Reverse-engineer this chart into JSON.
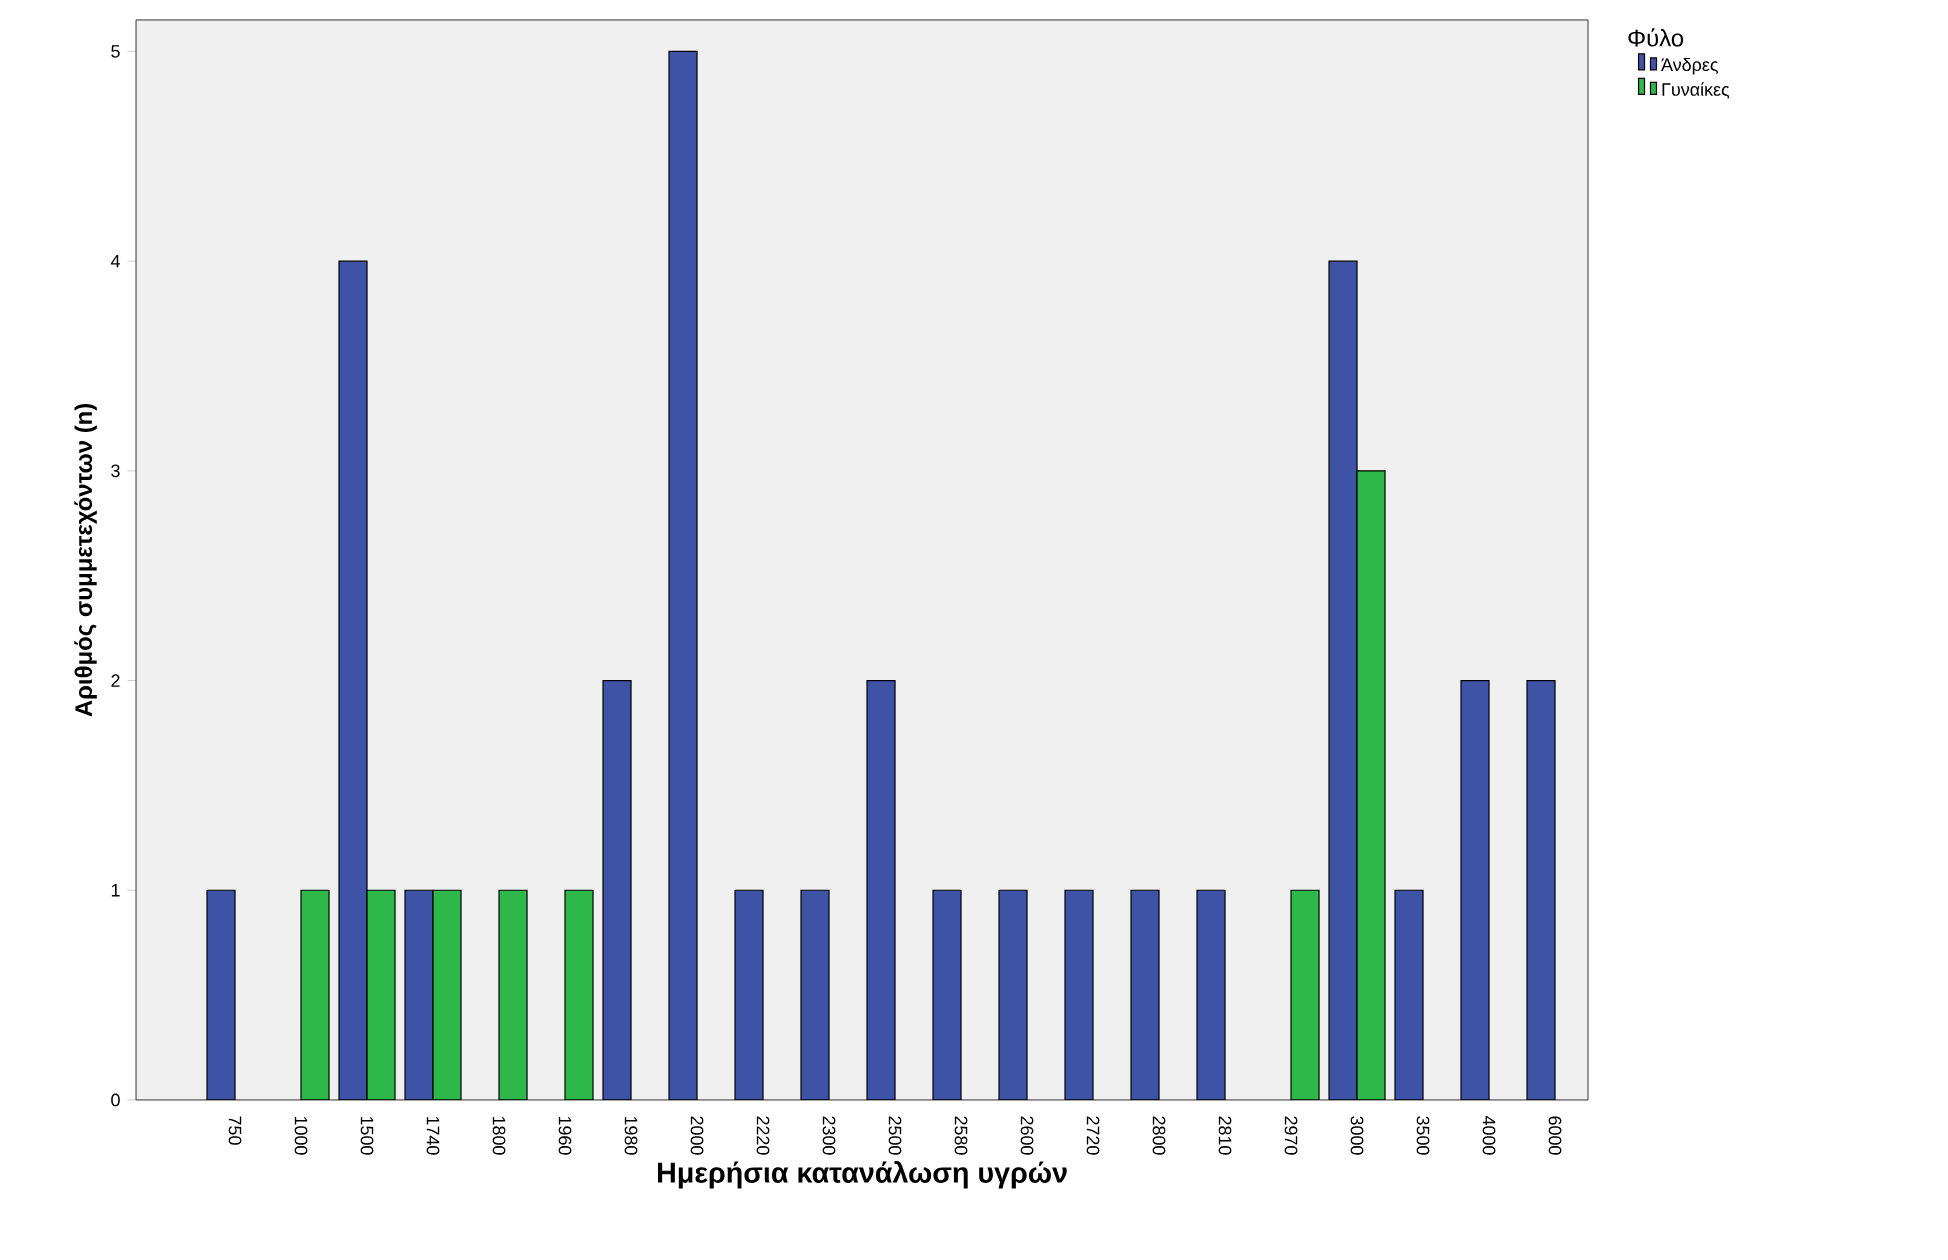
{
  "chart_data": {
    "type": "bar",
    "xlabel": "Ημερήσια κατανάλωση υγρών",
    "ylabel": "Αριθμός συμμετεχόντων (n)",
    "legend_title": "Φύλο",
    "legend": "top right",
    "categories": [
      "750",
      "1000",
      "1500",
      "1740",
      "1800",
      "1960",
      "1980",
      "2000",
      "2220",
      "2300",
      "2500",
      "2580",
      "2600",
      "2720",
      "2800",
      "2810",
      "2970",
      "3000",
      "3500",
      "4000",
      "6000"
    ],
    "series": [
      {
        "name": "Άνδρες",
        "color": "#3e53a5",
        "values": [
          1,
          null,
          4,
          1,
          null,
          null,
          2,
          5,
          1,
          1,
          2,
          1,
          1,
          1,
          1,
          1,
          null,
          4,
          1,
          2,
          2
        ]
      },
      {
        "name": "Γυναίκες",
        "color": "#2fb84a",
        "values": [
          null,
          1,
          1,
          1,
          1,
          1,
          null,
          null,
          null,
          null,
          null,
          null,
          null,
          null,
          null,
          null,
          1,
          3,
          null,
          null,
          null
        ]
      }
    ],
    "ylim": [
      0,
      5.15
    ],
    "yticks": [
      0,
      1,
      2,
      3,
      4,
      5
    ],
    "grid": false
  }
}
